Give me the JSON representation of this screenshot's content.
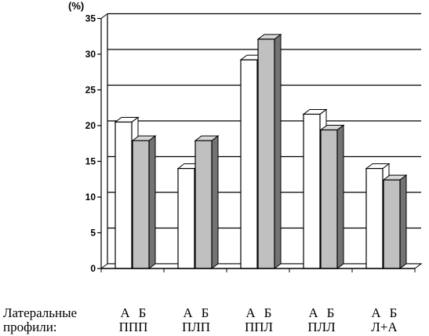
{
  "chart_data": {
    "type": "bar",
    "y_unit_label": "(%)",
    "ylim": [
      0,
      35
    ],
    "y_ticks": [
      "0",
      "5",
      "10",
      "15",
      "20",
      "25",
      "30",
      "35"
    ],
    "grid": true,
    "categories": [
      "ППП",
      "ПЛП",
      "ППЛ",
      "ПЛЛ",
      "Л+А"
    ],
    "series": [
      {
        "name": "А",
        "color": "#ffffff",
        "values": [
          20.5,
          14.0,
          29.2,
          21.6,
          14.0
        ]
      },
      {
        "name": "Б",
        "color": "#c0c0c0",
        "values": [
          17.9,
          17.9,
          32.1,
          19.4,
          12.4
        ]
      }
    ],
    "row_label_line1": "Латеральные",
    "row_label_line2": "профили:"
  }
}
